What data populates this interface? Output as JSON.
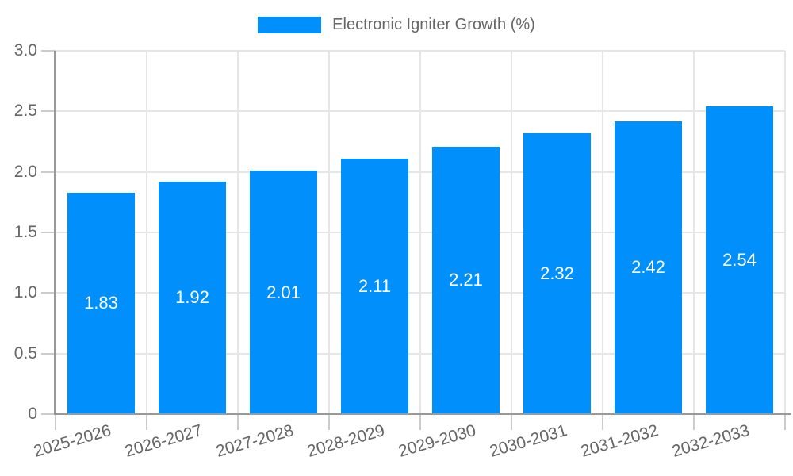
{
  "legend": {
    "label": "Electronic Igniter Growth (%)"
  },
  "chart_data": {
    "type": "bar",
    "title": "Electronic Igniter Growth (%)",
    "xlabel": "",
    "ylabel": "",
    "categories": [
      "2025-2026",
      "2026-2027",
      "2027-2028",
      "2028-2029",
      "2029-2030",
      "2030-2031",
      "2031-2032",
      "2032-2033"
    ],
    "series": [
      {
        "name": "Electronic Igniter Growth (%)",
        "values": [
          1.83,
          1.92,
          2.01,
          2.11,
          2.21,
          2.32,
          2.42,
          2.54
        ]
      }
    ],
    "value_labels": [
      "1.83",
      "1.92",
      "2.01",
      "2.11",
      "2.21",
      "2.32",
      "2.42",
      "2.54"
    ],
    "ylim": [
      0,
      3.0
    ],
    "y_tick_values": [
      0,
      0.5,
      1.0,
      1.5,
      2.0,
      2.5,
      3.0
    ],
    "y_tick_labels": [
      "0",
      "0.5",
      "1.0",
      "1.5",
      "2.0",
      "2.5",
      "3.0"
    ],
    "grid": true,
    "legend_position": "top"
  },
  "colors": {
    "bar": "#008ffb",
    "grid": "#e6e6e6",
    "tick": "#cccccc",
    "axis": "#999999",
    "axis_label": "#666666",
    "value_label": "#ffffff",
    "legend_label": "#666666",
    "background": "#ffffff"
  }
}
